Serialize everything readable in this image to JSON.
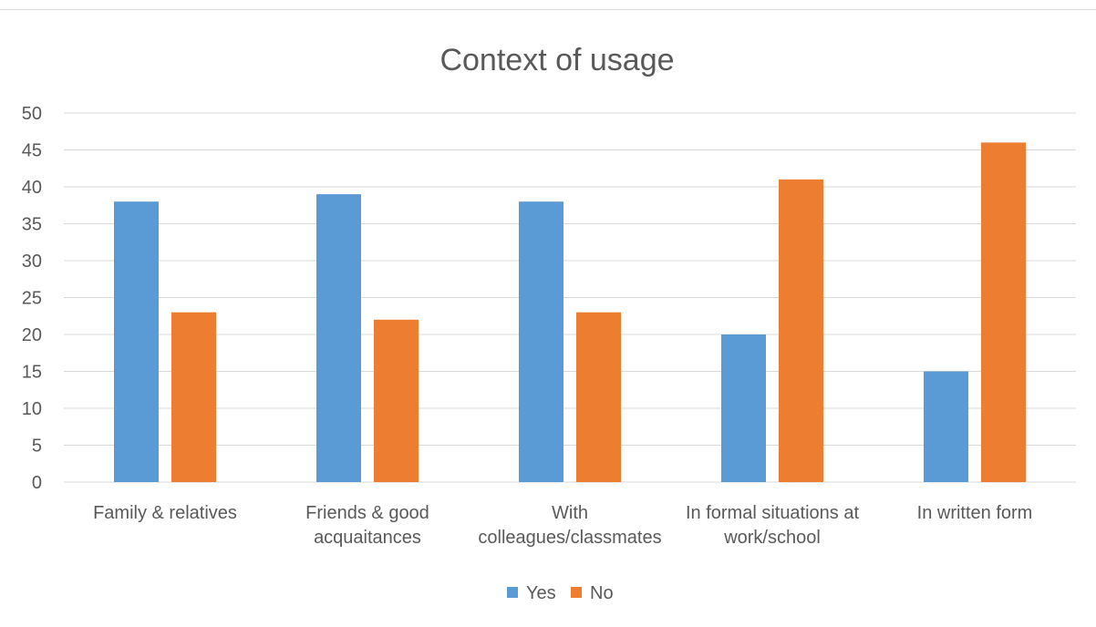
{
  "chart_data": {
    "type": "bar",
    "title": "Context of usage",
    "categories": [
      [
        "Family & relatives"
      ],
      [
        "Friends & good",
        "acquaitances"
      ],
      [
        "With",
        "colleagues/classmates"
      ],
      [
        "In formal situations at",
        "work/school"
      ],
      [
        "In written form"
      ]
    ],
    "series": [
      {
        "name": "Yes",
        "color": "#5b9bd5",
        "values": [
          38,
          39,
          38,
          20,
          15
        ]
      },
      {
        "name": "No",
        "color": "#ed7d31",
        "values": [
          23,
          22,
          23,
          41,
          46
        ]
      }
    ],
    "y_ticks": [
      "0",
      "5",
      "10",
      "15",
      "20",
      "25",
      "30",
      "35",
      "40",
      "45",
      "50"
    ],
    "ylim": [
      0,
      50
    ],
    "grid": true,
    "legend_position": "bottom"
  }
}
